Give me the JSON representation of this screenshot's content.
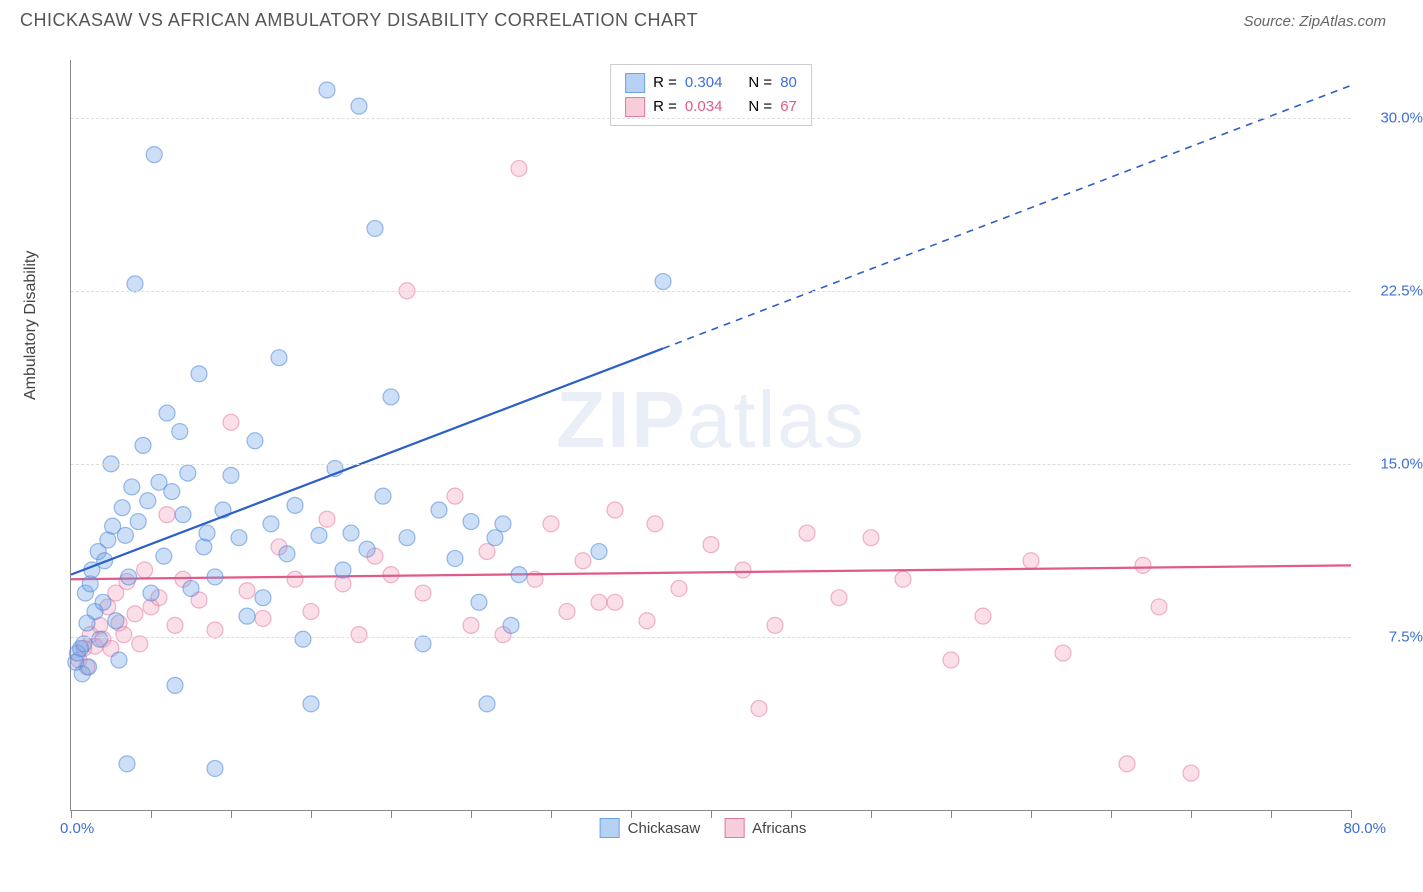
{
  "title": "CHICKASAW VS AFRICAN AMBULATORY DISABILITY CORRELATION CHART",
  "source": "Source: ZipAtlas.com",
  "watermark": {
    "bold": "ZIP",
    "rest": "atlas"
  },
  "y_axis_label": "Ambulatory Disability",
  "chart": {
    "type": "scatter",
    "xlim": [
      0,
      80
    ],
    "ylim": [
      0,
      32.5
    ],
    "xtick_step": 5,
    "y_ticks": [
      7.5,
      15.0,
      22.5,
      30.0
    ],
    "y_tick_labels": [
      "7.5%",
      "15.0%",
      "22.5%",
      "30.0%"
    ],
    "x_origin_label": "0.0%",
    "x_max_label": "80.0%",
    "background_color": "#ffffff",
    "grid_color": "#dddddd",
    "axis_color": "#888888",
    "marker_radius": 8,
    "marker_stroke_opacity": 0.55,
    "marker_fill_opacity": 0.35,
    "series": {
      "chickasaw": {
        "label": "Chickasaw",
        "color": "#6da3e8",
        "stroke": "#4a86d8",
        "R": "0.304",
        "N": "80",
        "points": [
          [
            0.3,
            6.4
          ],
          [
            0.4,
            6.8
          ],
          [
            0.6,
            7.0
          ],
          [
            0.7,
            5.9
          ],
          [
            0.8,
            7.2
          ],
          [
            0.9,
            9.4
          ],
          [
            1.0,
            8.1
          ],
          [
            1.1,
            6.2
          ],
          [
            1.2,
            9.8
          ],
          [
            1.3,
            10.4
          ],
          [
            1.5,
            8.6
          ],
          [
            1.7,
            11.2
          ],
          [
            1.8,
            7.4
          ],
          [
            2.0,
            9.0
          ],
          [
            2.1,
            10.8
          ],
          [
            2.3,
            11.7
          ],
          [
            2.5,
            15.0
          ],
          [
            2.6,
            12.3
          ],
          [
            2.8,
            8.2
          ],
          [
            3.0,
            6.5
          ],
          [
            3.2,
            13.1
          ],
          [
            3.4,
            11.9
          ],
          [
            3.6,
            10.1
          ],
          [
            3.8,
            14.0
          ],
          [
            4.0,
            22.8
          ],
          [
            4.2,
            12.5
          ],
          [
            4.5,
            15.8
          ],
          [
            4.8,
            13.4
          ],
          [
            5.0,
            9.4
          ],
          [
            5.2,
            28.4
          ],
          [
            5.5,
            14.2
          ],
          [
            5.8,
            11.0
          ],
          [
            6.0,
            17.2
          ],
          [
            6.3,
            13.8
          ],
          [
            6.5,
            5.4
          ],
          [
            6.8,
            16.4
          ],
          [
            7.0,
            12.8
          ],
          [
            7.3,
            14.6
          ],
          [
            7.5,
            9.6
          ],
          [
            8.0,
            18.9
          ],
          [
            8.3,
            11.4
          ],
          [
            8.5,
            12.0
          ],
          [
            9.0,
            10.1
          ],
          [
            9.5,
            13.0
          ],
          [
            10.0,
            14.5
          ],
          [
            10.5,
            11.8
          ],
          [
            11.0,
            8.4
          ],
          [
            11.5,
            16.0
          ],
          [
            12.0,
            9.2
          ],
          [
            12.5,
            12.4
          ],
          [
            13.0,
            19.6
          ],
          [
            13.5,
            11.1
          ],
          [
            14.0,
            13.2
          ],
          [
            14.5,
            7.4
          ],
          [
            15.0,
            4.6
          ],
          [
            15.5,
            11.9
          ],
          [
            16.0,
            31.2
          ],
          [
            16.5,
            14.8
          ],
          [
            17.0,
            10.4
          ],
          [
            17.5,
            12.0
          ],
          [
            18.0,
            30.5
          ],
          [
            18.5,
            11.3
          ],
          [
            19.0,
            25.2
          ],
          [
            19.5,
            13.6
          ],
          [
            20.0,
            17.9
          ],
          [
            21.0,
            11.8
          ],
          [
            22.0,
            7.2
          ],
          [
            23.0,
            13.0
          ],
          [
            24.0,
            10.9
          ],
          [
            25.0,
            12.5
          ],
          [
            25.5,
            9.0
          ],
          [
            26.0,
            4.6
          ],
          [
            26.5,
            11.8
          ],
          [
            27.0,
            12.4
          ],
          [
            27.5,
            8.0
          ],
          [
            28.0,
            10.2
          ],
          [
            33.0,
            11.2
          ],
          [
            37.0,
            22.9
          ],
          [
            3.5,
            2.0
          ],
          [
            9.0,
            1.8
          ]
        ],
        "trend": {
          "solid": {
            "x1": 0,
            "y1": 10.2,
            "x2": 37,
            "y2": 20.0
          },
          "dashed": {
            "x1": 37,
            "y1": 20.0,
            "x2": 80,
            "y2": 31.4
          },
          "color": "#2b5fc9",
          "width": 2.2
        }
      },
      "africans": {
        "label": "Africans",
        "color": "#f2a4bd",
        "stroke": "#e37aa0",
        "R": "0.034",
        "N": "67",
        "points": [
          [
            0.5,
            6.5
          ],
          [
            0.8,
            7.0
          ],
          [
            1.0,
            6.2
          ],
          [
            1.2,
            7.6
          ],
          [
            1.5,
            7.1
          ],
          [
            1.8,
            8.0
          ],
          [
            2.0,
            7.4
          ],
          [
            2.3,
            8.8
          ],
          [
            2.5,
            7.0
          ],
          [
            2.8,
            9.4
          ],
          [
            3.0,
            8.1
          ],
          [
            3.3,
            7.6
          ],
          [
            3.5,
            9.9
          ],
          [
            4.0,
            8.5
          ],
          [
            4.3,
            7.2
          ],
          [
            4.6,
            10.4
          ],
          [
            5.0,
            8.8
          ],
          [
            5.5,
            9.2
          ],
          [
            6.0,
            12.8
          ],
          [
            6.5,
            8.0
          ],
          [
            7.0,
            10.0
          ],
          [
            8.0,
            9.1
          ],
          [
            9.0,
            7.8
          ],
          [
            10.0,
            16.8
          ],
          [
            11.0,
            9.5
          ],
          [
            12.0,
            8.3
          ],
          [
            13.0,
            11.4
          ],
          [
            14.0,
            10.0
          ],
          [
            15.0,
            8.6
          ],
          [
            16.0,
            12.6
          ],
          [
            17.0,
            9.8
          ],
          [
            18.0,
            7.6
          ],
          [
            19.0,
            11.0
          ],
          [
            20.0,
            10.2
          ],
          [
            21.0,
            22.5
          ],
          [
            22.0,
            9.4
          ],
          [
            24.0,
            13.6
          ],
          [
            25.0,
            8.0
          ],
          [
            26.0,
            11.2
          ],
          [
            27.0,
            7.6
          ],
          [
            28.0,
            27.8
          ],
          [
            29.0,
            10.0
          ],
          [
            30.0,
            12.4
          ],
          [
            31.0,
            8.6
          ],
          [
            32.0,
            10.8
          ],
          [
            33.0,
            9.0
          ],
          [
            34.0,
            13.0
          ],
          [
            36.0,
            8.2
          ],
          [
            38.0,
            9.6
          ],
          [
            40.0,
            11.5
          ],
          [
            42.0,
            10.4
          ],
          [
            43.0,
            4.4
          ],
          [
            44.0,
            8.0
          ],
          [
            46.0,
            12.0
          ],
          [
            48.0,
            9.2
          ],
          [
            50.0,
            11.8
          ],
          [
            52.0,
            10.0
          ],
          [
            55.0,
            6.5
          ],
          [
            57.0,
            8.4
          ],
          [
            60.0,
            10.8
          ],
          [
            62.0,
            6.8
          ],
          [
            66.0,
            2.0
          ],
          [
            67.0,
            10.6
          ],
          [
            68.0,
            8.8
          ],
          [
            70.0,
            1.6
          ],
          [
            34.0,
            9.0
          ],
          [
            36.5,
            12.4
          ]
        ],
        "trend": {
          "solid": {
            "x1": 0,
            "y1": 10.0,
            "x2": 80,
            "y2": 10.6
          },
          "color": "#e05a8a",
          "width": 2.2
        }
      }
    }
  },
  "legend_top": {
    "rows": [
      {
        "swatch": "#b6d1f2",
        "border": "#6da3e8",
        "r_label": "R =",
        "r_val": "0.304",
        "n_label": "N =",
        "n_val": "80",
        "val_color": "#3b6fd6"
      },
      {
        "swatch": "#f7cdd9",
        "border": "#e37aa0",
        "r_label": "R =",
        "r_val": "0.034",
        "n_label": "N =",
        "n_val": "67",
        "val_color": "#e05a8a"
      }
    ]
  },
  "legend_bottom": {
    "items": [
      {
        "swatch": "#b6d1f2",
        "border": "#6da3e8",
        "label": "Chickasaw"
      },
      {
        "swatch": "#f7cdd9",
        "border": "#e37aa0",
        "label": "Africans"
      }
    ]
  }
}
